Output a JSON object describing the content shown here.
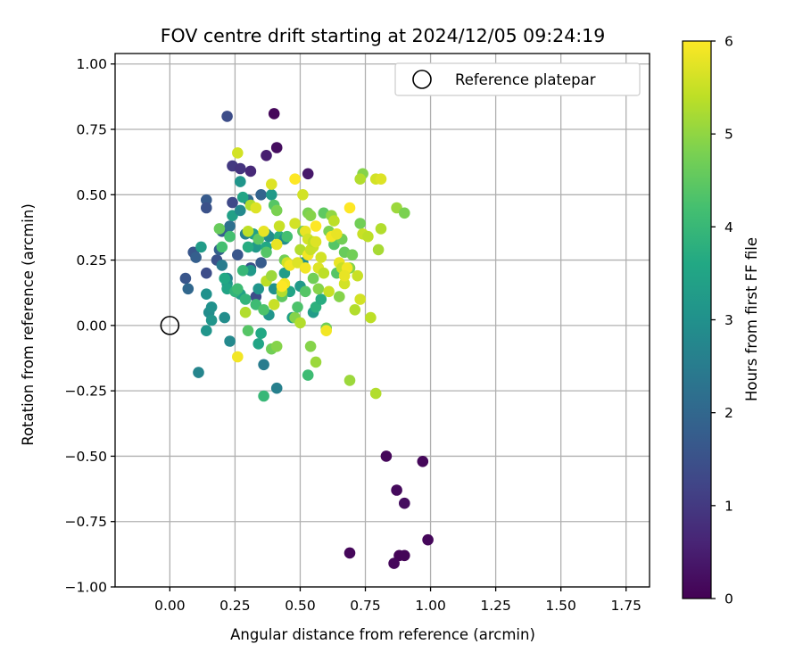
{
  "chart_data": {
    "type": "scatter",
    "title": "FOV centre drift starting at 2024/12/05 09:24:19",
    "xlabel": "Angular distance from reference (arcmin)",
    "ylabel": "Rotation from reference (arcmin)",
    "xlim": [
      -0.21,
      1.84
    ],
    "ylim": [
      -1.0,
      1.04
    ],
    "xticks": [
      0.0,
      0.25,
      0.5,
      0.75,
      1.0,
      1.25,
      1.5,
      1.75
    ],
    "xtick_labels": [
      "0.00",
      "0.25",
      "0.50",
      "0.75",
      "1.00",
      "1.25",
      "1.50",
      "1.75"
    ],
    "yticks": [
      -1.0,
      -0.75,
      -0.5,
      -0.25,
      0.0,
      0.25,
      0.5,
      0.75,
      1.0
    ],
    "ytick_labels": [
      "−1.00",
      "−0.75",
      "−0.50",
      "−0.25",
      "0.00",
      "0.25",
      "0.50",
      "0.75",
      "1.00"
    ],
    "grid": true,
    "legend": {
      "placement": "top-right",
      "entries": [
        {
          "label": "Reference platepar",
          "marker": "open-circle"
        }
      ]
    },
    "reference_point": {
      "x": 0.0,
      "y": 0.0
    },
    "colorbar": {
      "label": "Hours from first FF file",
      "range": [
        0,
        6
      ],
      "ticks": [
        0,
        1,
        2,
        3,
        4,
        5,
        6
      ],
      "colormap": "viridis"
    },
    "series": [
      {
        "points": [
          [
            0.4,
            0.81,
            0.1
          ],
          [
            0.41,
            0.68,
            0.2
          ],
          [
            0.37,
            0.65,
            0.5
          ],
          [
            0.53,
            0.58,
            0.4
          ],
          [
            0.31,
            0.59,
            0.7
          ],
          [
            0.24,
            0.61,
            1.0
          ],
          [
            0.27,
            0.6,
            0.9
          ],
          [
            0.22,
            0.8,
            1.4
          ],
          [
            0.83,
            -0.5,
            0.1
          ],
          [
            0.97,
            -0.52,
            0.1
          ],
          [
            0.87,
            -0.63,
            0.15
          ],
          [
            0.9,
            -0.68,
            0.2
          ],
          [
            0.69,
            -0.87,
            0.1
          ],
          [
            0.88,
            -0.88,
            0.05
          ],
          [
            0.9,
            -0.88,
            0.05
          ],
          [
            0.86,
            -0.91,
            0.1
          ],
          [
            0.99,
            -0.82,
            0.1
          ],
          [
            0.06,
            0.18,
            1.6
          ],
          [
            0.07,
            0.14,
            2.0
          ],
          [
            0.09,
            0.28,
            1.6
          ],
          [
            0.1,
            0.26,
            1.8
          ],
          [
            0.14,
            0.2,
            1.4
          ],
          [
            0.14,
            0.48,
            1.7
          ],
          [
            0.14,
            0.45,
            1.5
          ],
          [
            0.24,
            0.47,
            1.3
          ],
          [
            0.26,
            0.27,
            1.6
          ],
          [
            0.2,
            0.36,
            1.8
          ],
          [
            0.23,
            0.38,
            2.2
          ],
          [
            0.31,
            0.22,
            1.5
          ],
          [
            0.33,
            0.11,
            1.4
          ],
          [
            0.35,
            0.5,
            1.9
          ],
          [
            0.3,
            0.48,
            2.1
          ],
          [
            0.35,
            0.24,
            1.7
          ],
          [
            0.18,
            0.25,
            1.5
          ],
          [
            0.19,
            0.29,
            1.8
          ],
          [
            0.11,
            -0.18,
            2.7
          ],
          [
            0.14,
            0.12,
            3.0
          ],
          [
            0.15,
            0.05,
            2.9
          ],
          [
            0.16,
            0.07,
            3.0
          ],
          [
            0.16,
            0.02,
            3.1
          ],
          [
            0.14,
            -0.02,
            3.1
          ],
          [
            0.12,
            0.3,
            3.3
          ],
          [
            0.2,
            0.23,
            2.5
          ],
          [
            0.22,
            0.18,
            2.6
          ],
          [
            0.22,
            0.16,
            3.2
          ],
          [
            0.21,
            0.18,
            3.6
          ],
          [
            0.22,
            0.14,
            3.5
          ],
          [
            0.23,
            -0.06,
            2.8
          ],
          [
            0.21,
            0.03,
            2.9
          ],
          [
            0.24,
            0.42,
            3.4
          ],
          [
            0.27,
            0.55,
            3.1
          ],
          [
            0.27,
            0.44,
            2.8
          ],
          [
            0.28,
            0.49,
            3.5
          ],
          [
            0.29,
            0.35,
            2.6
          ],
          [
            0.32,
            0.35,
            3.4
          ],
          [
            0.33,
            0.3,
            3.2
          ],
          [
            0.34,
            0.14,
            3.1
          ],
          [
            0.36,
            -0.15,
            2.5
          ],
          [
            0.37,
            0.35,
            3.0
          ],
          [
            0.37,
            0.3,
            3.6
          ],
          [
            0.38,
            0.34,
            2.9
          ],
          [
            0.39,
            0.5,
            3.2
          ],
          [
            0.4,
            0.14,
            3.0
          ],
          [
            0.41,
            -0.24,
            2.6
          ],
          [
            0.42,
            0.34,
            3.7
          ],
          [
            0.44,
            0.33,
            2.9
          ],
          [
            0.44,
            0.2,
            3.3
          ],
          [
            0.46,
            0.13,
            3.5
          ],
          [
            0.47,
            0.03,
            3.4
          ],
          [
            0.5,
            0.15,
            3.2
          ],
          [
            0.51,
            0.24,
            3.0
          ],
          [
            0.55,
            0.05,
            3.3
          ],
          [
            0.56,
            0.07,
            3.8
          ],
          [
            0.58,
            0.1,
            3.7
          ],
          [
            0.35,
            -0.03,
            3.6
          ],
          [
            0.34,
            -0.07,
            3.5
          ],
          [
            0.38,
            0.04,
            3.1
          ],
          [
            0.27,
            0.12,
            3.4
          ],
          [
            0.29,
            0.1,
            3.9
          ],
          [
            0.31,
            0.21,
            3.2
          ],
          [
            0.3,
            0.3,
            3.7
          ],
          [
            0.25,
            0.13,
            3.9
          ],
          [
            0.23,
            0.34,
            4.2
          ],
          [
            0.2,
            0.3,
            4.2
          ],
          [
            0.19,
            0.37,
            4.6
          ],
          [
            0.26,
            0.14,
            4.1
          ],
          [
            0.28,
            0.21,
            4.0
          ],
          [
            0.3,
            -0.02,
            4.4
          ],
          [
            0.33,
            0.08,
            4.1
          ],
          [
            0.36,
            0.06,
            4.3
          ],
          [
            0.39,
            -0.09,
            4.7
          ],
          [
            0.41,
            -0.08,
            4.9
          ],
          [
            0.36,
            -0.27,
            4.0
          ],
          [
            0.34,
            0.33,
            4.5
          ],
          [
            0.37,
            0.28,
            4.4
          ],
          [
            0.4,
            0.46,
            4.4
          ],
          [
            0.41,
            0.44,
            4.8
          ],
          [
            0.43,
            0.11,
            4.5
          ],
          [
            0.44,
            0.25,
            4.7
          ],
          [
            0.45,
            0.34,
            4.2
          ],
          [
            0.48,
            0.03,
            4.9
          ],
          [
            0.49,
            0.07,
            4.3
          ],
          [
            0.51,
            0.36,
            4.6
          ],
          [
            0.52,
            0.13,
            4.4
          ],
          [
            0.53,
            0.43,
            4.8
          ],
          [
            0.54,
            0.42,
            4.9
          ],
          [
            0.55,
            0.18,
            4.7
          ],
          [
            0.57,
            0.14,
            4.9
          ],
          [
            0.59,
            0.43,
            4.5
          ],
          [
            0.61,
            0.36,
            4.8
          ],
          [
            0.62,
            0.42,
            5.0
          ],
          [
            0.63,
            0.31,
            4.4
          ],
          [
            0.66,
            0.33,
            4.7
          ],
          [
            0.67,
            0.28,
            4.6
          ],
          [
            0.69,
            0.22,
            4.9
          ],
          [
            0.7,
            0.27,
            4.7
          ],
          [
            0.73,
            0.39,
            4.7
          ],
          [
            0.74,
            0.58,
            4.9
          ],
          [
            0.87,
            0.45,
            5.1
          ],
          [
            0.9,
            0.43,
            4.8
          ],
          [
            0.53,
            -0.19,
            4.1
          ],
          [
            0.54,
            -0.08,
            4.9
          ],
          [
            0.56,
            -0.14,
            5.1
          ],
          [
            0.69,
            -0.21,
            5.1
          ],
          [
            0.79,
            -0.26,
            5.3
          ],
          [
            0.6,
            -0.01,
            4.7
          ],
          [
            0.64,
            0.2,
            4.4
          ],
          [
            0.65,
            0.11,
            4.9
          ],
          [
            0.29,
            0.05,
            5.3
          ],
          [
            0.3,
            0.36,
            5.4
          ],
          [
            0.31,
            0.46,
            5.3
          ],
          [
            0.33,
            0.45,
            5.7
          ],
          [
            0.36,
            0.36,
            5.8
          ],
          [
            0.37,
            0.17,
            5.4
          ],
          [
            0.39,
            0.19,
            5.1
          ],
          [
            0.4,
            0.08,
            5.5
          ],
          [
            0.42,
            0.38,
            5.5
          ],
          [
            0.43,
            0.13,
            5.3
          ],
          [
            0.44,
            0.16,
            5.9
          ],
          [
            0.45,
            0.24,
            5.6
          ],
          [
            0.46,
            0.23,
            5.9
          ],
          [
            0.48,
            0.39,
            5.6
          ],
          [
            0.49,
            0.24,
            5.7
          ],
          [
            0.5,
            0.29,
            5.3
          ],
          [
            0.5,
            0.01,
            5.3
          ],
          [
            0.51,
            0.5,
            5.6
          ],
          [
            0.52,
            0.36,
            5.8
          ],
          [
            0.52,
            0.22,
            5.9
          ],
          [
            0.53,
            0.33,
            5.6
          ],
          [
            0.53,
            0.27,
            5.9
          ],
          [
            0.54,
            0.29,
            5.5
          ],
          [
            0.55,
            0.3,
            5.5
          ],
          [
            0.55,
            0.32,
            5.4
          ],
          [
            0.56,
            0.38,
            6.0
          ],
          [
            0.57,
            0.22,
            5.7
          ],
          [
            0.58,
            0.26,
            5.6
          ],
          [
            0.59,
            0.2,
            5.4
          ],
          [
            0.6,
            -0.02,
            5.9
          ],
          [
            0.61,
            0.13,
            5.5
          ],
          [
            0.62,
            0.34,
            5.9
          ],
          [
            0.63,
            0.4,
            5.4
          ],
          [
            0.64,
            0.35,
            5.8
          ],
          [
            0.65,
            0.24,
            5.8
          ],
          [
            0.66,
            0.22,
            5.5
          ],
          [
            0.67,
            0.16,
            5.6
          ],
          [
            0.68,
            0.22,
            5.9
          ],
          [
            0.69,
            0.45,
            6.0
          ],
          [
            0.71,
            0.06,
            5.3
          ],
          [
            0.72,
            0.19,
            5.5
          ],
          [
            0.73,
            0.1,
            5.6
          ],
          [
            0.74,
            0.35,
            5.5
          ],
          [
            0.76,
            0.34,
            5.4
          ],
          [
            0.77,
            0.03,
            5.4
          ],
          [
            0.79,
            0.56,
            5.6
          ],
          [
            0.81,
            0.56,
            5.7
          ],
          [
            0.8,
            0.29,
            5.2
          ],
          [
            0.81,
            0.37,
            5.3
          ],
          [
            0.73,
            0.56,
            5.3
          ],
          [
            0.26,
            -0.12,
            5.9
          ],
          [
            0.26,
            0.66,
            5.6
          ],
          [
            0.39,
            0.54,
            5.7
          ],
          [
            0.48,
            0.56,
            6.0
          ],
          [
            0.41,
            0.31,
            5.8
          ],
          [
            0.43,
            0.15,
            6.0
          ],
          [
            0.56,
            0.32,
            5.7
          ],
          [
            0.67,
            0.19,
            5.8
          ]
        ]
      }
    ]
  }
}
